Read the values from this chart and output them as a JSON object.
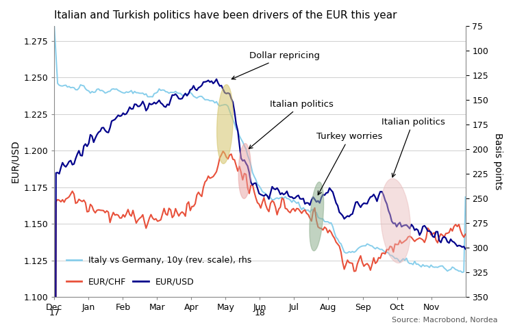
{
  "title": "Italian and Turkish politics have been drivers of the EUR this year",
  "ylabel_left": "EUR/USD",
  "ylabel_right": "Basis points",
  "source": "Source: Macrobond, Nordea",
  "ylim_left": [
    1.1,
    1.285
  ],
  "ylim_right": [
    350,
    75
  ],
  "yticks_left": [
    1.1,
    1.125,
    1.15,
    1.175,
    1.2,
    1.225,
    1.25,
    1.275
  ],
  "yticks_right": [
    75,
    100,
    125,
    150,
    175,
    200,
    225,
    250,
    275,
    300,
    325,
    350
  ],
  "eurusd_color": "#00008B",
  "eurchf_color": "#E8503A",
  "itde_color": "#87CEEB",
  "ellipse_yellow": "#D4C46A",
  "ellipse_pink": "#E8A0A0",
  "ellipse_green": "#8FAF8F",
  "ellipse_pink2": "#E8B8B8"
}
